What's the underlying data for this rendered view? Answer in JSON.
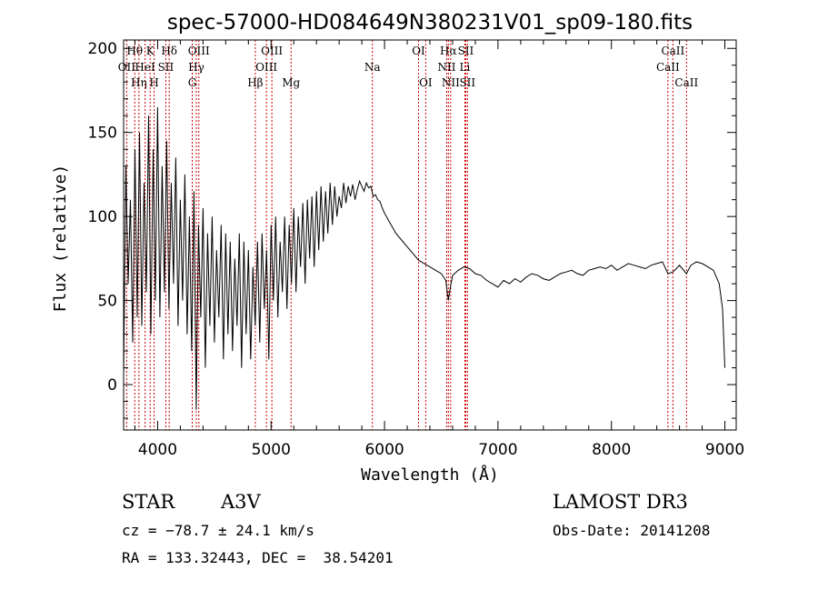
{
  "chart_data": {
    "type": "line",
    "title": "spec-57000-HD084649N380231V01_sp09-180.fits",
    "xlabel": "Wavelength (Å)",
    "ylabel": "Flux (relative)",
    "xlim": [
      3700,
      9100
    ],
    "ylim": [
      -27,
      205
    ],
    "xticks": [
      4000,
      5000,
      6000,
      7000,
      8000,
      9000
    ],
    "yticks": [
      0,
      50,
      100,
      150,
      200
    ],
    "series": [
      {
        "name": "flux",
        "x": [
          3700,
          3720,
          3740,
          3760,
          3780,
          3800,
          3820,
          3840,
          3860,
          3880,
          3900,
          3920,
          3940,
          3960,
          3980,
          4000,
          4020,
          4040,
          4060,
          4080,
          4100,
          4120,
          4140,
          4160,
          4180,
          4200,
          4220,
          4240,
          4260,
          4280,
          4300,
          4320,
          4340,
          4360,
          4380,
          4400,
          4420,
          4440,
          4460,
          4480,
          4500,
          4520,
          4540,
          4560,
          4580,
          4600,
          4620,
          4640,
          4660,
          4680,
          4700,
          4720,
          4740,
          4760,
          4780,
          4800,
          4820,
          4840,
          4860,
          4880,
          4900,
          4920,
          4940,
          4960,
          4980,
          5000,
          5020,
          5040,
          5060,
          5080,
          5100,
          5120,
          5140,
          5160,
          5180,
          5200,
          5220,
          5240,
          5260,
          5280,
          5300,
          5320,
          5340,
          5360,
          5380,
          5400,
          5420,
          5440,
          5460,
          5480,
          5500,
          5520,
          5540,
          5560,
          5580,
          5600,
          5620,
          5640,
          5660,
          5680,
          5700,
          5720,
          5740,
          5760,
          5780,
          5800,
          5820,
          5840,
          5860,
          5880,
          5900,
          5920,
          5940,
          5960,
          5980,
          6000,
          6050,
          6100,
          6150,
          6200,
          6250,
          6300,
          6350,
          6400,
          6450,
          6500,
          6540,
          6563,
          6580,
          6600,
          6650,
          6700,
          6750,
          6800,
          6850,
          6900,
          6950,
          7000,
          7050,
          7100,
          7150,
          7200,
          7250,
          7300,
          7350,
          7400,
          7450,
          7500,
          7550,
          7600,
          7650,
          7700,
          7750,
          7800,
          7850,
          7900,
          7950,
          8000,
          8050,
          8100,
          8150,
          8200,
          8250,
          8300,
          8350,
          8400,
          8450,
          8498,
          8542,
          8600,
          8662,
          8700,
          8750,
          8800,
          8850,
          8900,
          8950,
          8980,
          9000
        ],
        "y": [
          5,
          130,
          60,
          110,
          25,
          140,
          40,
          150,
          35,
          120,
          55,
          160,
          30,
          140,
          50,
          165,
          40,
          130,
          55,
          145,
          45,
          120,
          60,
          135,
          35,
          110,
          50,
          125,
          30,
          100,
          20,
          115,
          -15,
          95,
          40,
          105,
          10,
          90,
          35,
          100,
          25,
          80,
          40,
          95,
          15,
          90,
          30,
          85,
          20,
          75,
          35,
          90,
          10,
          85,
          30,
          80,
          15,
          70,
          35,
          85,
          25,
          90,
          45,
          80,
          15,
          95,
          50,
          100,
          40,
          85,
          55,
          100,
          45,
          95,
          60,
          105,
          55,
          100,
          70,
          108,
          60,
          110,
          75,
          112,
          70,
          115,
          80,
          118,
          85,
          115,
          90,
          120,
          95,
          118,
          100,
          112,
          105,
          120,
          108,
          118,
          112,
          119,
          110,
          116,
          121,
          118,
          115,
          120,
          117,
          118,
          112,
          113,
          110,
          109,
          105,
          102,
          96,
          90,
          86,
          82,
          78,
          74,
          72,
          70,
          68,
          66,
          62,
          50,
          58,
          65,
          68,
          70,
          69,
          66,
          65,
          62,
          60,
          58,
          62,
          60,
          63,
          61,
          64,
          66,
          65,
          63,
          62,
          64,
          66,
          67,
          68,
          66,
          65,
          68,
          69,
          70,
          69,
          71,
          68,
          70,
          72,
          71,
          70,
          69,
          71,
          72,
          73,
          66,
          67,
          71,
          66,
          71,
          73,
          72,
          70,
          68,
          60,
          45,
          10
        ]
      }
    ],
    "spectral_lines": [
      {
        "name": "OII",
        "wavelength": 3727,
        "row": 2
      },
      {
        "name": "Hθ",
        "wavelength": 3798,
        "row": 1
      },
      {
        "name": "Hη",
        "wavelength": 3835,
        "row": 3
      },
      {
        "name": "HeI",
        "wavelength": 3889,
        "row": 2
      },
      {
        "name": "K",
        "wavelength": 3934,
        "row": 1
      },
      {
        "name": "H",
        "wavelength": 3969,
        "row": 3
      },
      {
        "name": "SII",
        "wavelength": 4072,
        "row": 2
      },
      {
        "name": "Hδ",
        "wavelength": 4102,
        "row": 1
      },
      {
        "name": "G",
        "wavelength": 4305,
        "row": 3
      },
      {
        "name": "Hγ",
        "wavelength": 4341,
        "row": 2
      },
      {
        "name": "OIII",
        "wavelength": 4363,
        "row": 1
      },
      {
        "name": "Hβ",
        "wavelength": 4861,
        "row": 3
      },
      {
        "name": "OIII",
        "wavelength": 4959,
        "row": 2
      },
      {
        "name": "OIII",
        "wavelength": 5007,
        "row": 1
      },
      {
        "name": "Mg",
        "wavelength": 5176,
        "row": 3
      },
      {
        "name": "Na",
        "wavelength": 5893,
        "row": 2
      },
      {
        "name": "OI",
        "wavelength": 6300,
        "row": 1
      },
      {
        "name": "OI",
        "wavelength": 6363,
        "row": 3
      },
      {
        "name": "NII",
        "wavelength": 6548,
        "row": 2
      },
      {
        "name": "Hα",
        "wavelength": 6563,
        "row": 1
      },
      {
        "name": "NII",
        "wavelength": 6583,
        "row": 3
      },
      {
        "name": "Li",
        "wavelength": 6708,
        "row": 2
      },
      {
        "name": "SII",
        "wavelength": 6716,
        "row": 1
      },
      {
        "name": "SII",
        "wavelength": 6731,
        "row": 3
      },
      {
        "name": "CaII",
        "wavelength": 8498,
        "row": 2
      },
      {
        "name": "CaII",
        "wavelength": 8542,
        "row": 1
      },
      {
        "name": "CaII",
        "wavelength": 8662,
        "row": 3
      }
    ],
    "line_color": "#cc0000",
    "data_color": "#000000"
  },
  "info": {
    "class": "STAR",
    "subclass": "A3V",
    "survey": "LAMOST DR3",
    "cz": "cz = −78.7 ± 24.1 km/s",
    "obs_date": "Obs-Date: 20141208",
    "radec": "RA = 133.32443, DEC =  38.54201"
  }
}
